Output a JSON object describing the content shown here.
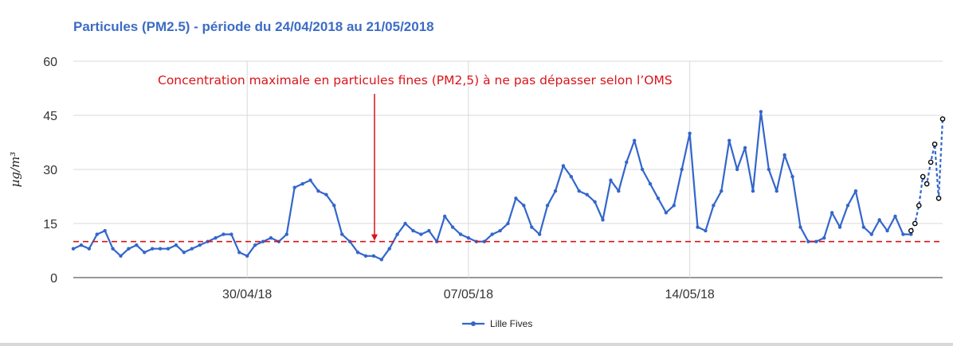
{
  "chart_data": {
    "type": "line",
    "title": "Particules (PM2.5) - période du 24/04/2018 au 21/05/2018",
    "ylabel": "µg/m³",
    "xlabel": "",
    "ylim": [
      0,
      60
    ],
    "y_ticks": [
      0,
      15,
      30,
      45,
      60
    ],
    "x_range": [
      "2018-04-24T12:00",
      "2018-05-21T24:00"
    ],
    "x_ticks": [
      {
        "date": "2018-04-30T00:00",
        "label": "30/04/18"
      },
      {
        "date": "2018-05-07T00:00",
        "label": "07/05/18"
      },
      {
        "date": "2018-05-14T00:00",
        "label": "14/05/18"
      }
    ],
    "grid": true,
    "legend_position": "bottom",
    "threshold": {
      "value": 10,
      "color": "#d9141b",
      "style": "dashed",
      "label": "Concentration maximale en particules fines (PM2,5) à ne pas dépasser selon l’OMS"
    },
    "series": [
      {
        "name": "Lille Fives",
        "color": "#3366cc",
        "x": [
          "2018-04-24T12:00",
          "2018-04-24T18:00",
          "2018-04-25T00:00",
          "2018-04-25T06:00",
          "2018-04-25T12:00",
          "2018-04-25T18:00",
          "2018-04-26T00:00",
          "2018-04-26T06:00",
          "2018-04-26T12:00",
          "2018-04-26T18:00",
          "2018-04-27T00:00",
          "2018-04-27T06:00",
          "2018-04-27T12:00",
          "2018-04-27T18:00",
          "2018-04-28T00:00",
          "2018-04-28T06:00",
          "2018-04-28T12:00",
          "2018-04-28T18:00",
          "2018-04-29T00:00",
          "2018-04-29T06:00",
          "2018-04-29T12:00",
          "2018-04-29T18:00",
          "2018-04-30T00:00",
          "2018-04-30T06:00",
          "2018-04-30T12:00",
          "2018-04-30T18:00",
          "2018-05-01T00:00",
          "2018-05-01T06:00",
          "2018-05-01T12:00",
          "2018-05-01T18:00",
          "2018-05-02T00:00",
          "2018-05-02T06:00",
          "2018-05-02T12:00",
          "2018-05-02T18:00",
          "2018-05-03T00:00",
          "2018-05-03T06:00",
          "2018-05-03T12:00",
          "2018-05-03T18:00",
          "2018-05-04T00:00",
          "2018-05-04T06:00",
          "2018-05-04T12:00",
          "2018-05-04T18:00",
          "2018-05-05T00:00",
          "2018-05-05T06:00",
          "2018-05-05T12:00",
          "2018-05-05T18:00",
          "2018-05-06T00:00",
          "2018-05-06T06:00",
          "2018-05-06T12:00",
          "2018-05-06T18:00",
          "2018-05-07T00:00",
          "2018-05-07T06:00",
          "2018-05-07T12:00",
          "2018-05-07T18:00",
          "2018-05-08T00:00",
          "2018-05-08T06:00",
          "2018-05-08T12:00",
          "2018-05-08T18:00",
          "2018-05-09T00:00",
          "2018-05-09T06:00",
          "2018-05-09T12:00",
          "2018-05-09T18:00",
          "2018-05-10T00:00",
          "2018-05-10T06:00",
          "2018-05-10T12:00",
          "2018-05-10T18:00",
          "2018-05-11T00:00",
          "2018-05-11T06:00",
          "2018-05-11T12:00",
          "2018-05-11T18:00",
          "2018-05-12T00:00",
          "2018-05-12T06:00",
          "2018-05-12T12:00",
          "2018-05-12T18:00",
          "2018-05-13T00:00",
          "2018-05-13T06:00",
          "2018-05-13T12:00",
          "2018-05-13T18:00",
          "2018-05-14T00:00",
          "2018-05-14T06:00",
          "2018-05-14T12:00",
          "2018-05-14T18:00",
          "2018-05-15T00:00",
          "2018-05-15T06:00",
          "2018-05-15T12:00",
          "2018-05-15T18:00",
          "2018-05-16T00:00",
          "2018-05-16T06:00",
          "2018-05-16T12:00",
          "2018-05-16T18:00",
          "2018-05-17T00:00",
          "2018-05-17T06:00",
          "2018-05-17T12:00",
          "2018-05-17T18:00",
          "2018-05-18T00:00",
          "2018-05-18T06:00",
          "2018-05-18T12:00",
          "2018-05-18T18:00",
          "2018-05-19T00:00",
          "2018-05-19T06:00",
          "2018-05-19T12:00",
          "2018-05-19T18:00",
          "2018-05-20T00:00",
          "2018-05-20T06:00",
          "2018-05-20T12:00",
          "2018-05-20T18:00",
          "2018-05-21T00:00"
        ],
        "values": [
          8,
          9,
          8,
          12,
          13,
          8,
          6,
          8,
          9,
          7,
          8,
          8,
          8,
          9,
          7,
          8,
          9,
          10,
          11,
          12,
          12,
          7,
          6,
          9,
          10,
          11,
          10,
          12,
          25,
          26,
          27,
          24,
          23,
          20,
          12,
          10,
          7,
          6,
          6,
          5,
          8,
          12,
          15,
          13,
          12,
          13,
          10,
          17,
          14,
          12,
          11,
          10,
          10,
          12,
          13,
          15,
          22,
          20,
          14,
          12,
          20,
          24,
          31,
          28,
          24,
          23,
          21,
          16,
          27,
          24,
          32,
          38,
          30,
          26,
          22,
          18,
          20,
          30,
          40,
          14,
          13,
          20,
          24,
          38,
          30,
          36,
          24,
          46,
          30,
          24,
          34,
          28,
          14,
          10,
          10,
          11,
          18,
          14,
          20,
          24,
          14,
          12,
          16,
          13,
          17,
          12,
          12
        ]
      },
      {
        "name": "",
        "color": "#000000",
        "style": "dashed",
        "x": [
          "2018-05-21T00:00",
          "2018-05-21T03:00",
          "2018-05-21T06:00",
          "2018-05-21T09:00",
          "2018-05-21T12:00",
          "2018-05-21T15:00",
          "2018-05-21T18:00",
          "2018-05-21T21:00",
          "2018-05-22T00:00"
        ],
        "values": [
          13,
          15,
          20,
          28,
          26,
          32,
          37,
          22,
          44
        ]
      }
    ]
  }
}
